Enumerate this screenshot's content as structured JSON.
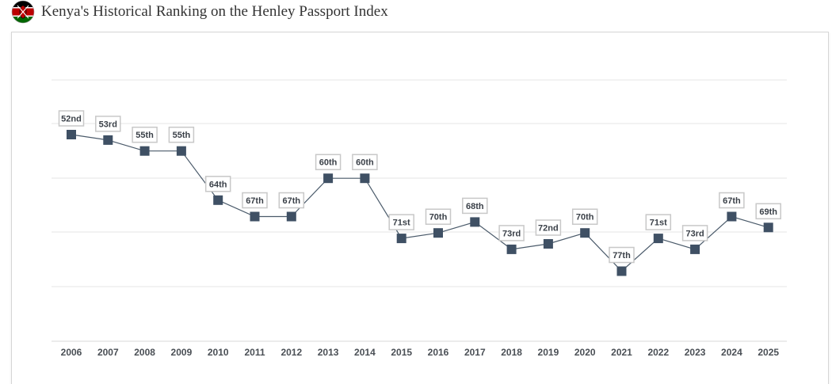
{
  "header": {
    "title": "Kenya's Historical Ranking on the Henley Passport Index",
    "flag_icon": "kenya-flag-icon"
  },
  "colors": {
    "marker": "#3f5064",
    "line": "#4a5a6a",
    "grid": "#e6e6e6",
    "label_border": "#c8c8c8"
  },
  "chart_data": {
    "type": "line",
    "title": "",
    "xlabel": "",
    "ylabel": "",
    "y_inverted": true,
    "grid": true,
    "x": [
      "2006",
      "2007",
      "2008",
      "2009",
      "2010",
      "2011",
      "2012",
      "2013",
      "2014",
      "2015",
      "2016",
      "2017",
      "2018",
      "2019",
      "2020",
      "2021",
      "2022",
      "2023",
      "2024",
      "2025"
    ],
    "values": [
      52,
      53,
      55,
      55,
      64,
      67,
      67,
      60,
      60,
      71,
      70,
      68,
      73,
      72,
      70,
      77,
      71,
      73,
      67,
      69
    ],
    "labels": [
      "52nd",
      "53rd",
      "55th",
      "55th",
      "64th",
      "67th",
      "67th",
      "60th",
      "60th",
      "71st",
      "70th",
      "68th",
      "73rd",
      "72nd",
      "70th",
      "77th",
      "71st",
      "73rd",
      "67th",
      "69th"
    ]
  }
}
